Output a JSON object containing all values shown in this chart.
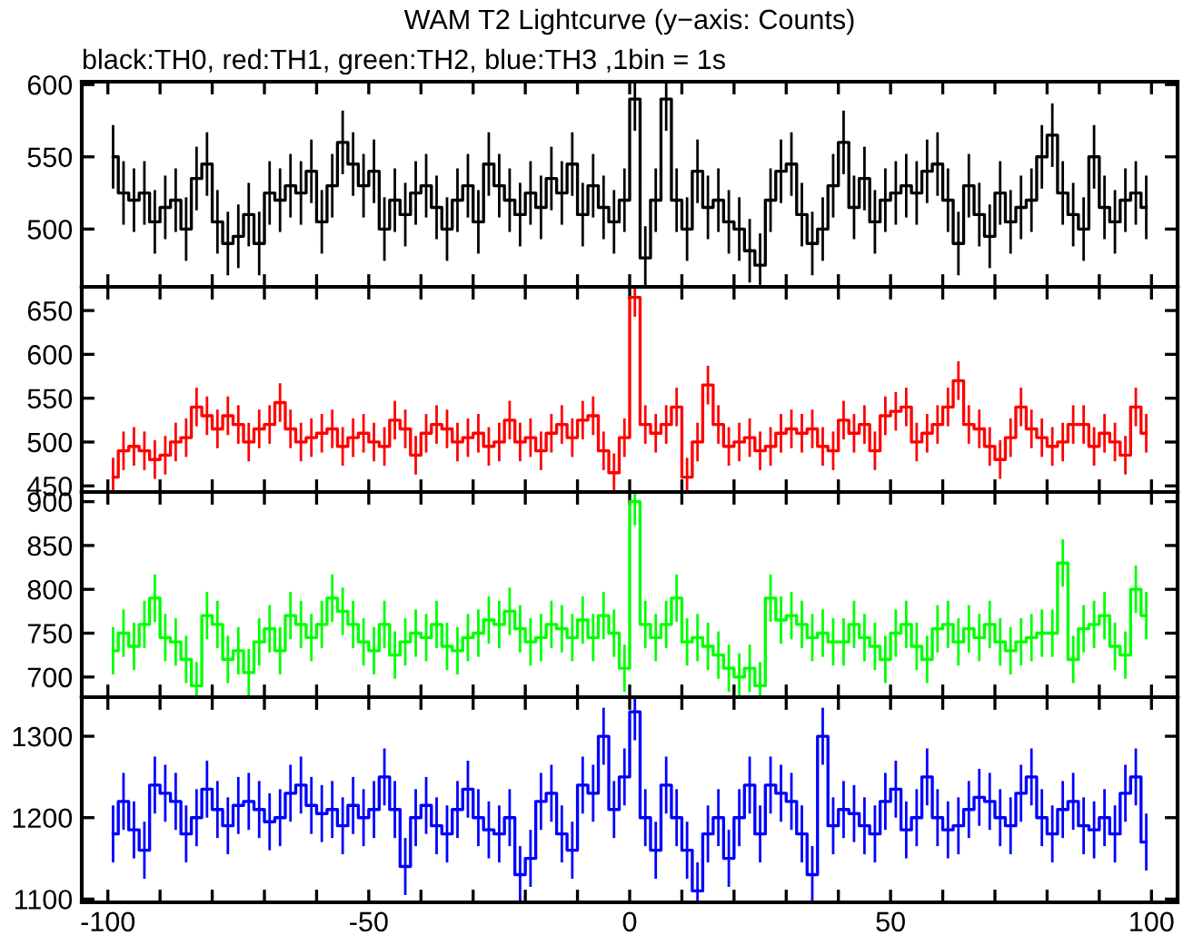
{
  "chart_data": [
    {
      "type": "step",
      "title": "WAM T2 Lightcurve (y−axis: Counts)",
      "subtitle": "black:TH0, red:TH1, green:TH2, blue:TH3 ,1bin = 1s",
      "tick_labels": "y",
      "xlim": [
        -105,
        105
      ],
      "xticks": [
        {
          "value": -100,
          "label": null
        },
        {
          "value": -90,
          "label": null
        },
        {
          "value": -80,
          "label": null
        },
        {
          "value": -70,
          "label": null
        },
        {
          "value": -60,
          "label": null
        },
        {
          "value": -50,
          "label": null
        },
        {
          "value": -40,
          "label": null
        },
        {
          "value": -30,
          "label": null
        },
        {
          "value": -20,
          "label": null
        },
        {
          "value": -10,
          "label": null
        },
        {
          "value": 0,
          "label": null
        },
        {
          "value": 10,
          "label": null
        },
        {
          "value": 20,
          "label": null
        },
        {
          "value": 30,
          "label": null
        },
        {
          "value": 40,
          "label": null
        },
        {
          "value": 50,
          "label": null
        },
        {
          "value": 60,
          "label": null
        },
        {
          "value": 70,
          "label": null
        },
        {
          "value": 80,
          "label": null
        },
        {
          "value": 90,
          "label": null
        },
        {
          "value": 100,
          "label": null
        }
      ],
      "ylim": [
        460,
        602
      ],
      "yticks": [
        500,
        550,
        600
      ],
      "x": [
        -99,
        -97,
        -95,
        -93,
        -91,
        -89,
        -87,
        -85,
        -83,
        -81,
        -79,
        -77,
        -75,
        -73,
        -71,
        -69,
        -67,
        -65,
        -63,
        -61,
        -59,
        -57,
        -55,
        -53,
        -51,
        -49,
        -47,
        -45,
        -43,
        -41,
        -39,
        -37,
        -35,
        -33,
        -31,
        -29,
        -27,
        -25,
        -23,
        -21,
        -19,
        -17,
        -15,
        -13,
        -11,
        -9,
        -7,
        -5,
        -3,
        -1,
        1,
        3,
        5,
        7,
        9,
        11,
        13,
        15,
        17,
        19,
        21,
        23,
        25,
        27,
        29,
        31,
        33,
        35,
        37,
        39,
        41,
        43,
        45,
        47,
        49,
        51,
        53,
        55,
        57,
        59,
        61,
        63,
        65,
        67,
        69,
        71,
        73,
        75,
        77,
        79,
        81,
        83,
        85,
        87,
        89,
        91,
        93,
        95,
        97,
        99
      ],
      "series": [
        {
          "color": "#000000",
          "values": [
            550,
            525,
            520,
            525,
            505,
            515,
            520,
            500,
            535,
            545,
            505,
            490,
            495,
            510,
            490,
            525,
            520,
            530,
            525,
            540,
            505,
            530,
            560,
            545,
            530,
            540,
            500,
            520,
            510,
            525,
            530,
            515,
            500,
            520,
            530,
            505,
            545,
            530,
            520,
            510,
            525,
            515,
            535,
            525,
            545,
            510,
            530,
            515,
            505,
            520,
            590,
            480,
            520,
            590,
            520,
            500,
            540,
            515,
            520,
            505,
            500,
            485,
            475,
            520,
            540,
            545,
            510,
            490,
            500,
            530,
            560,
            515,
            535,
            505,
            520,
            525,
            530,
            525,
            540,
            545,
            520,
            490,
            530,
            510,
            495,
            525,
            505,
            515,
            520,
            550,
            565,
            525,
            510,
            500,
            550,
            515,
            505,
            520,
            525,
            515
          ],
          "errors": [
            22,
            22,
            22,
            22,
            22,
            22,
            22,
            22,
            22,
            22,
            22,
            22,
            22,
            22,
            22,
            22,
            22,
            22,
            22,
            22,
            22,
            22,
            22,
            22,
            22,
            22,
            22,
            22,
            22,
            22,
            22,
            22,
            22,
            22,
            22,
            22,
            22,
            22,
            22,
            22,
            22,
            22,
            22,
            22,
            22,
            22,
            22,
            22,
            22,
            22,
            22,
            22,
            22,
            22,
            22,
            22,
            22,
            22,
            22,
            22,
            22,
            22,
            22,
            22,
            22,
            22,
            22,
            22,
            22,
            22,
            22,
            22,
            22,
            22,
            22,
            22,
            22,
            22,
            22,
            22,
            22,
            22,
            22,
            22,
            22,
            22,
            22,
            22,
            22,
            22,
            22,
            22,
            22,
            22,
            22,
            22,
            22,
            22,
            22,
            22
          ]
        }
      ]
    },
    {
      "type": "step",
      "tick_labels": "y",
      "xlim": [
        -105,
        105
      ],
      "xticks": [
        {
          "value": -100,
          "label": null
        },
        {
          "value": -90,
          "label": null
        },
        {
          "value": -80,
          "label": null
        },
        {
          "value": -70,
          "label": null
        },
        {
          "value": -60,
          "label": null
        },
        {
          "value": -50,
          "label": null
        },
        {
          "value": -40,
          "label": null
        },
        {
          "value": -30,
          "label": null
        },
        {
          "value": -20,
          "label": null
        },
        {
          "value": -10,
          "label": null
        },
        {
          "value": 0,
          "label": null
        },
        {
          "value": 10,
          "label": null
        },
        {
          "value": 20,
          "label": null
        },
        {
          "value": 30,
          "label": null
        },
        {
          "value": 40,
          "label": null
        },
        {
          "value": 50,
          "label": null
        },
        {
          "value": 60,
          "label": null
        },
        {
          "value": 70,
          "label": null
        },
        {
          "value": 80,
          "label": null
        },
        {
          "value": 90,
          "label": null
        },
        {
          "value": 100,
          "label": null
        }
      ],
      "ylim": [
        443,
        677
      ],
      "yticks": [
        450,
        500,
        550,
        600,
        650
      ],
      "x": [
        -99,
        -97,
        -95,
        -93,
        -91,
        -89,
        -87,
        -85,
        -83,
        -81,
        -79,
        -77,
        -75,
        -73,
        -71,
        -69,
        -67,
        -65,
        -63,
        -61,
        -59,
        -57,
        -55,
        -53,
        -51,
        -49,
        -47,
        -45,
        -43,
        -41,
        -39,
        -37,
        -35,
        -33,
        -31,
        -29,
        -27,
        -25,
        -23,
        -21,
        -19,
        -17,
        -15,
        -13,
        -11,
        -9,
        -7,
        -5,
        -3,
        -1,
        1,
        3,
        5,
        7,
        9,
        11,
        13,
        15,
        17,
        19,
        21,
        23,
        25,
        27,
        29,
        31,
        33,
        35,
        37,
        39,
        41,
        43,
        45,
        47,
        49,
        51,
        53,
        55,
        57,
        59,
        61,
        63,
        65,
        67,
        69,
        71,
        73,
        75,
        77,
        79,
        81,
        83,
        85,
        87,
        89,
        91,
        93,
        95,
        97,
        99
      ],
      "series": [
        {
          "color": "#ff0000",
          "values": [
            460,
            490,
            495,
            490,
            480,
            485,
            500,
            505,
            540,
            530,
            515,
            530,
            520,
            500,
            515,
            520,
            545,
            515,
            500,
            505,
            510,
            515,
            495,
            505,
            510,
            500,
            495,
            525,
            515,
            485,
            510,
            520,
            515,
            500,
            505,
            510,
            495,
            500,
            525,
            500,
            505,
            490,
            510,
            520,
            505,
            525,
            530,
            490,
            465,
            505,
            665,
            520,
            510,
            520,
            540,
            460,
            500,
            565,
            520,
            495,
            500,
            505,
            490,
            495,
            510,
            515,
            510,
            515,
            495,
            490,
            525,
            510,
            520,
            490,
            530,
            535,
            540,
            500,
            510,
            520,
            540,
            570,
            520,
            515,
            495,
            480,
            505,
            540,
            515,
            505,
            495,
            500,
            520,
            520,
            495,
            510,
            500,
            485,
            540,
            510
          ],
          "errors": [
            22,
            22,
            22,
            22,
            22,
            22,
            22,
            22,
            22,
            22,
            22,
            22,
            22,
            22,
            22,
            22,
            22,
            22,
            22,
            22,
            22,
            22,
            22,
            22,
            22,
            22,
            22,
            22,
            22,
            22,
            22,
            22,
            22,
            22,
            22,
            22,
            22,
            22,
            22,
            22,
            22,
            22,
            22,
            22,
            22,
            22,
            22,
            22,
            22,
            22,
            22,
            22,
            22,
            22,
            22,
            22,
            22,
            22,
            22,
            22,
            22,
            22,
            22,
            22,
            22,
            22,
            22,
            22,
            22,
            22,
            22,
            22,
            22,
            22,
            22,
            22,
            22,
            22,
            22,
            22,
            22,
            22,
            22,
            22,
            22,
            22,
            22,
            22,
            22,
            22,
            22,
            22,
            22,
            22,
            22,
            22,
            22,
            22,
            22,
            22
          ]
        }
      ]
    },
    {
      "type": "step",
      "tick_labels": "y",
      "xlim": [
        -105,
        105
      ],
      "xticks": [
        {
          "value": -100,
          "label": null
        },
        {
          "value": -90,
          "label": null
        },
        {
          "value": -80,
          "label": null
        },
        {
          "value": -70,
          "label": null
        },
        {
          "value": -60,
          "label": null
        },
        {
          "value": -50,
          "label": null
        },
        {
          "value": -40,
          "label": null
        },
        {
          "value": -30,
          "label": null
        },
        {
          "value": -20,
          "label": null
        },
        {
          "value": -10,
          "label": null
        },
        {
          "value": 0,
          "label": null
        },
        {
          "value": 10,
          "label": null
        },
        {
          "value": 20,
          "label": null
        },
        {
          "value": 30,
          "label": null
        },
        {
          "value": 40,
          "label": null
        },
        {
          "value": 50,
          "label": null
        },
        {
          "value": 60,
          "label": null
        },
        {
          "value": 70,
          "label": null
        },
        {
          "value": 80,
          "label": null
        },
        {
          "value": 90,
          "label": null
        },
        {
          "value": 100,
          "label": null
        }
      ],
      "ylim": [
        677,
        911
      ],
      "yticks": [
        700,
        750,
        800,
        850,
        900
      ],
      "x": [
        -99,
        -97,
        -95,
        -93,
        -91,
        -89,
        -87,
        -85,
        -83,
        -81,
        -79,
        -77,
        -75,
        -73,
        -71,
        -69,
        -67,
        -65,
        -63,
        -61,
        -59,
        -57,
        -55,
        -53,
        -51,
        -49,
        -47,
        -45,
        -43,
        -41,
        -39,
        -37,
        -35,
        -33,
        -31,
        -29,
        -27,
        -25,
        -23,
        -21,
        -19,
        -17,
        -15,
        -13,
        -11,
        -9,
        -7,
        -5,
        -3,
        -1,
        1,
        3,
        5,
        7,
        9,
        11,
        13,
        15,
        17,
        19,
        21,
        23,
        25,
        27,
        29,
        31,
        33,
        35,
        37,
        39,
        41,
        43,
        45,
        47,
        49,
        51,
        53,
        55,
        57,
        59,
        61,
        63,
        65,
        67,
        69,
        71,
        73,
        75,
        77,
        79,
        81,
        83,
        85,
        87,
        89,
        91,
        93,
        95,
        97,
        99
      ],
      "series": [
        {
          "color": "#00ff00",
          "values": [
            730,
            750,
            735,
            760,
            790,
            745,
            740,
            720,
            690,
            770,
            760,
            720,
            730,
            705,
            740,
            755,
            730,
            770,
            760,
            745,
            760,
            790,
            775,
            760,
            740,
            730,
            760,
            725,
            740,
            750,
            745,
            760,
            735,
            730,
            745,
            750,
            765,
            760,
            775,
            755,
            740,
            745,
            760,
            755,
            745,
            765,
            745,
            770,
            750,
            710,
            900,
            760,
            745,
            760,
            790,
            740,
            745,
            735,
            725,
            710,
            700,
            710,
            690,
            790,
            765,
            770,
            760,
            745,
            750,
            740,
            740,
            760,
            745,
            735,
            720,
            750,
            760,
            735,
            720,
            755,
            760,
            740,
            755,
            745,
            760,
            740,
            730,
            740,
            745,
            750,
            750,
            830,
            720,
            755,
            760,
            770,
            735,
            725,
            800,
            770
          ],
          "errors": [
            27,
            27,
            27,
            27,
            27,
            27,
            27,
            27,
            27,
            27,
            27,
            27,
            27,
            27,
            27,
            27,
            27,
            27,
            27,
            27,
            27,
            27,
            27,
            27,
            27,
            27,
            27,
            27,
            27,
            27,
            27,
            27,
            27,
            27,
            27,
            27,
            27,
            27,
            27,
            27,
            27,
            27,
            27,
            27,
            27,
            27,
            27,
            27,
            27,
            27,
            27,
            27,
            27,
            27,
            27,
            27,
            27,
            27,
            27,
            27,
            27,
            27,
            27,
            27,
            27,
            27,
            27,
            27,
            27,
            27,
            27,
            27,
            27,
            27,
            27,
            27,
            27,
            27,
            27,
            27,
            27,
            27,
            27,
            27,
            27,
            27,
            27,
            27,
            27,
            27,
            27,
            27,
            27,
            27,
            27,
            27,
            27,
            27,
            27,
            27
          ]
        }
      ]
    },
    {
      "type": "step",
      "xlim": [
        -105,
        105
      ],
      "xticks": [
        -100,
        {
          "value": -90,
          "label": null
        },
        {
          "value": -80,
          "label": null
        },
        {
          "value": -70,
          "label": null
        },
        {
          "value": -60,
          "label": null
        },
        -50,
        {
          "value": -40,
          "label": null
        },
        {
          "value": -30,
          "label": null
        },
        {
          "value": -20,
          "label": null
        },
        {
          "value": -10,
          "label": null
        },
        0,
        {
          "value": 10,
          "label": null
        },
        {
          "value": 20,
          "label": null
        },
        {
          "value": 30,
          "label": null
        },
        {
          "value": 40,
          "label": null
        },
        50,
        {
          "value": 60,
          "label": null
        },
        {
          "value": 70,
          "label": null
        },
        {
          "value": 80,
          "label": null
        },
        {
          "value": 90,
          "label": null
        },
        100
      ],
      "ylim": [
        1096,
        1348
      ],
      "yticks": [
        1100,
        1200,
        1300
      ],
      "x": [
        -99,
        -97,
        -95,
        -93,
        -91,
        -89,
        -87,
        -85,
        -83,
        -81,
        -79,
        -77,
        -75,
        -73,
        -71,
        -69,
        -67,
        -65,
        -63,
        -61,
        -59,
        -57,
        -55,
        -53,
        -51,
        -49,
        -47,
        -45,
        -43,
        -41,
        -39,
        -37,
        -35,
        -33,
        -31,
        -29,
        -27,
        -25,
        -23,
        -21,
        -19,
        -17,
        -15,
        -13,
        -11,
        -9,
        -7,
        -5,
        -3,
        -1,
        1,
        3,
        5,
        7,
        9,
        11,
        13,
        15,
        17,
        19,
        21,
        23,
        25,
        27,
        29,
        31,
        33,
        35,
        37,
        39,
        41,
        43,
        45,
        47,
        49,
        51,
        53,
        55,
        57,
        59,
        61,
        63,
        65,
        67,
        69,
        71,
        73,
        75,
        77,
        79,
        81,
        83,
        85,
        87,
        89,
        91,
        93,
        95,
        97,
        99
      ],
      "series": [
        {
          "color": "#0000ff",
          "values": [
            1180,
            1220,
            1185,
            1160,
            1240,
            1230,
            1220,
            1180,
            1200,
            1235,
            1210,
            1190,
            1215,
            1220,
            1210,
            1195,
            1200,
            1230,
            1240,
            1215,
            1205,
            1210,
            1190,
            1215,
            1200,
            1210,
            1250,
            1210,
            1140,
            1200,
            1215,
            1190,
            1180,
            1210,
            1235,
            1200,
            1185,
            1180,
            1200,
            1130,
            1150,
            1220,
            1230,
            1180,
            1160,
            1240,
            1230,
            1300,
            1210,
            1250,
            1330,
            1200,
            1160,
            1240,
            1200,
            1160,
            1110,
            1180,
            1200,
            1150,
            1200,
            1240,
            1180,
            1240,
            1230,
            1220,
            1180,
            1130,
            1300,
            1190,
            1210,
            1205,
            1190,
            1180,
            1220,
            1235,
            1185,
            1200,
            1250,
            1200,
            1185,
            1190,
            1210,
            1225,
            1220,
            1200,
            1190,
            1230,
            1250,
            1200,
            1180,
            1210,
            1220,
            1190,
            1185,
            1200,
            1180,
            1230,
            1250,
            1170
          ],
          "errors": [
            35,
            35,
            35,
            35,
            35,
            35,
            35,
            35,
            35,
            35,
            35,
            35,
            35,
            35,
            35,
            35,
            35,
            35,
            35,
            35,
            35,
            35,
            35,
            35,
            35,
            35,
            35,
            35,
            35,
            35,
            35,
            35,
            35,
            35,
            35,
            35,
            35,
            35,
            35,
            35,
            35,
            35,
            35,
            35,
            35,
            35,
            35,
            35,
            35,
            35,
            35,
            35,
            35,
            35,
            35,
            35,
            35,
            35,
            35,
            35,
            35,
            35,
            35,
            35,
            35,
            35,
            35,
            35,
            35,
            35,
            35,
            35,
            35,
            35,
            35,
            35,
            35,
            35,
            35,
            35,
            35,
            35,
            35,
            35,
            35,
            35,
            35,
            35,
            35,
            35,
            35,
            35,
            35,
            35,
            35,
            35,
            35,
            35,
            35,
            35
          ]
        }
      ]
    }
  ]
}
